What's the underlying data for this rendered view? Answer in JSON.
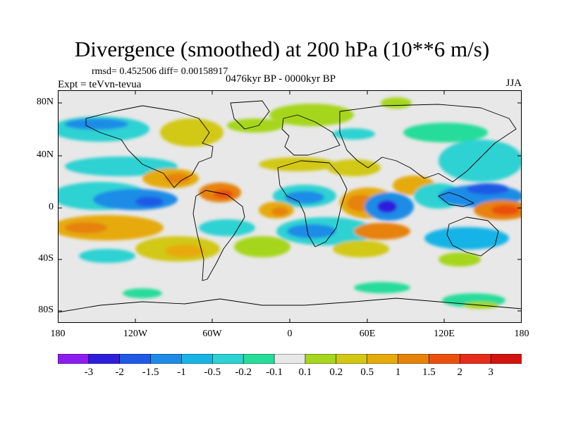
{
  "header": {
    "title": "Divergence (smoothed) at 200 hPa (10**6 m/s)",
    "stats": "rmsd= 0.452506 diff= 0.00158917",
    "experiment": "Expt = teVvn-tevua",
    "period": "0476kyr BP - 0000kyr BP",
    "season": "JJA"
  },
  "axes": {
    "lat_labels": [
      "80N",
      "40N",
      "0",
      "40S",
      "80S"
    ],
    "lon_labels": [
      "180",
      "120W",
      "60W",
      "0",
      "60E",
      "120E",
      "180"
    ]
  },
  "colorbar": {
    "labels": [
      "-3",
      "-2",
      "-1.5",
      "-1",
      "-0.5",
      "-0.2",
      "-0.1",
      "0.1",
      "0.2",
      "0.5",
      "1",
      "1.5",
      "2",
      "3"
    ],
    "colors": [
      "#8c1cf0",
      "#2d1edc",
      "#1e5ae6",
      "#1e8ce6",
      "#19b4e6",
      "#2dd2d2",
      "#28dc9a",
      "#e8e8e8",
      "#a6d61e",
      "#d2c814",
      "#e6aa0a",
      "#e6820a",
      "#eb500f",
      "#e62d19",
      "#d2140f"
    ]
  }
}
